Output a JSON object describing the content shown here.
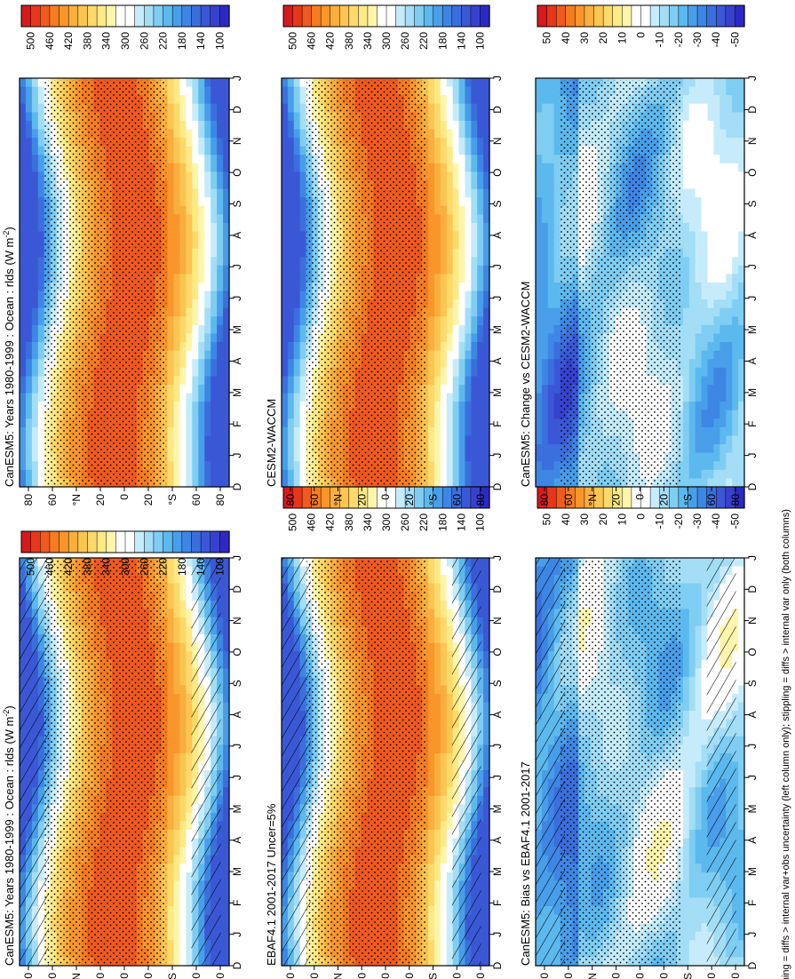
{
  "footnote": "hatching = diffs > internal var+obs uncertainty (left column only); stippling = diffs > internal var only (both columns)",
  "months": [
    "D",
    "J",
    "F",
    "M",
    "A",
    "M",
    "J",
    "J",
    "A",
    "S",
    "O",
    "N",
    "D",
    "J"
  ],
  "lat_ticks": [
    "80",
    "60",
    "°N",
    "20",
    "0",
    "20",
    "°S",
    "60",
    "80"
  ],
  "palettes": {
    "abs": [
      "#d7191c",
      "#e8361b",
      "#f05a1e",
      "#f57c21",
      "#f8962c",
      "#f9ae3e",
      "#fbc552",
      "#fcd96a",
      "#fdea86",
      "#fef5ac",
      "#ffffff",
      "#ffffff",
      "#c6ecfb",
      "#a3ddf6",
      "#7fcdf2",
      "#5cb9ee",
      "#489ee9",
      "#3e86e4",
      "#3a6fdd",
      "#3a58d6",
      "#3642cd",
      "#2c29c4"
    ],
    "diff": [
      "#d7191c",
      "#e8361b",
      "#f05a1e",
      "#f57c21",
      "#f8962c",
      "#f9ae3e",
      "#fbc552",
      "#fcd96a",
      "#fdea86",
      "#fef5ac",
      "#ffffff",
      "#ffffff",
      "#c6ecfb",
      "#a3ddf6",
      "#7fcdf2",
      "#5cb9ee",
      "#489ee9",
      "#3e86e4",
      "#3a6fdd",
      "#3a58d6",
      "#3642cd",
      "#2c29c4"
    ]
  },
  "chart_data": [
    {
      "type": "heatmap",
      "title": "CanESM5: Years 1980-1999 : Ocean : rlds (W m$^{-2}$)",
      "title_main": "CanESM5: Years 1980-1999 : Ocean : rlds (W m",
      "title_sup": "-2",
      "title_end": ")",
      "x": "month",
      "y": "latitude",
      "colorbar": {
        "ticks": [
          "500",
          "460",
          "420",
          "380",
          "340",
          "300",
          "260",
          "220",
          "180",
          "140",
          "100"
        ]
      },
      "hatching": true,
      "stippling": true
    },
    {
      "type": "heatmap",
      "title": "EBAF4.1 2001-2017 Uncer=5%",
      "x": "month",
      "y": "latitude",
      "colorbar": {
        "ticks": [
          "500",
          "460",
          "420",
          "380",
          "340",
          "300",
          "260",
          "220",
          "180",
          "140",
          "100"
        ]
      },
      "hatching": true,
      "stippling": true
    },
    {
      "type": "heatmap",
      "title": "CanESM5: Bias vs EBAF4.1 2001-2017",
      "x": "month",
      "y": "latitude",
      "colorbar": {
        "ticks": [
          "50",
          "40",
          "30",
          "20",
          "10",
          "0",
          "-10",
          "-20",
          "-30",
          "-40",
          "-50"
        ]
      },
      "hatching": true,
      "stippling": true
    },
    {
      "type": "heatmap",
      "title": "CanESM5: Years 1980-1999 : Ocean : rlds (W m$^{-2}$)",
      "title_main": "CanESM5: Years 1980-1999 : Ocean : rlds (W m",
      "title_sup": "-2",
      "title_end": ")",
      "x": "month",
      "y": "latitude",
      "colorbar": {
        "ticks": [
          "500",
          "460",
          "420",
          "380",
          "340",
          "300",
          "260",
          "220",
          "180",
          "140",
          "100"
        ]
      },
      "hatching": false,
      "stippling": true
    },
    {
      "type": "heatmap",
      "title": "CESM2-WACCM",
      "x": "month",
      "y": "latitude",
      "colorbar": {
        "ticks": [
          "500",
          "460",
          "420",
          "380",
          "340",
          "300",
          "260",
          "220",
          "180",
          "140",
          "100"
        ]
      },
      "hatching": false,
      "stippling": true
    },
    {
      "type": "heatmap",
      "title": "CanESM5: Change vs CESM2-WACCM",
      "x": "month",
      "y": "latitude",
      "colorbar": {
        "ticks": [
          "50",
          "40",
          "30",
          "20",
          "10",
          "0",
          "-10",
          "-20",
          "-30",
          "-40",
          "-50"
        ]
      },
      "hatching": false,
      "stippling": true
    }
  ]
}
